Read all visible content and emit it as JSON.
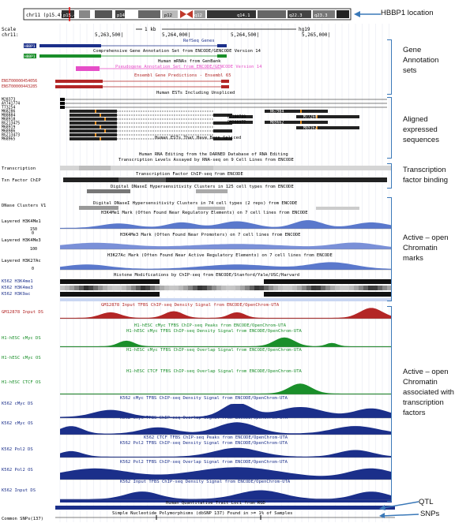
{
  "ideogram": {
    "chrom_label": "chr11 (p15.4)",
    "bands": [
      "p15.4",
      "p14",
      "p12",
      "q12",
      "q14.1",
      "q22.3",
      "q23.3"
    ],
    "callout": "HBBP1 location"
  },
  "ruler": {
    "scale_label": "Scale",
    "chr_label": "chr11:",
    "scale_text": "1 kb",
    "assembly": "hg19",
    "positions": [
      "5,263,500|",
      "5,264,000|",
      "5,264,500|",
      "5,265,000|"
    ]
  },
  "tracks": {
    "refseq_title": "RefSeq Genes",
    "gencode_title": "Comprehensive Gene Annotation Set from ENCODE/GENCODE Version 14",
    "mrna_title": "Human mRNAs from GenBank",
    "pseudo_title": "Pseudogene Annotation Set from ENCODE/GENCODE Version 14",
    "ensembl_title": "Ensembl Gene Predictions - Ensembl 65",
    "est_title": "Human ESTs Including Unspliced",
    "spliced_est_title": "Human ESTs That Have Been Spliced",
    "rna_editing_title": "Human RNA Editing from the DARNED Database of RNA Editing",
    "rnaseq_title": "Transcription Levels Assayed by RNA-seq on 9 Cell Lines from ENCODE",
    "txn_factor_title": "Transcription Factor ChIP-seq from ENCODE",
    "dnase_uniform_title": "Digital DNaseI Hypersensitivity Clusters in 125 cell types from ENCODE",
    "dnase_74_title": "Digital DNaseI Hypersensitivity Clusters in 74 cell types (2 reps) from ENCODE",
    "h3k4me1_title": "H3K4Me1 Mark (Often Found Near Regulatory Elements) on 7 cell lines from ENCODE",
    "h3k4me3_title": "H3K4Me3 Mark (Often Found Near Promoters) on 7 cell lines from ENCODE",
    "h3k27ac_title": "H3K27Ac Mark (Often Found Near Active Regulatory Elements) on 7 cell lines from ENCODE",
    "histone_title": "Histone Modifications by ChIP-seq from ENCODE/Stanford/Yale/USC/Harvard",
    "gm_input_title": "GM12878 Input TFBS ChIP-seq Density Signal from ENCODE/OpenChrom-UTA",
    "h1_peaks_title": "H1-hESC cMyc TFBS ChIP-seq Peaks from ENCODE/OpenChrom-UTA",
    "h1_density_title": "H1-hESC cMyc TFBS ChIP-seq Density Signal from ENCODE/OpenChrom-UTA",
    "h1_overlap_title": "H1-hESC cMyc TFBS ChIP-seq Overlap Signal from ENCODE/OpenChrom-UTA",
    "h1_ctcf_title": "H1-hESC CTCF TFBS ChIP-seq Overlap Signal from ENCODE/OpenChrom-UTA",
    "k562_cmyc_density_title": "K562 cMyc TFBS ChIP-seq Density Signal from ENCODE/OpenChrom-UTA",
    "k562_cmyc_overlap_title": "K562 cMyc TFBS ChIP-seq Overlap Signal from ENCODE/OpenChrom-UTA",
    "k562_ctcf_title": "K562 CTCF TFBS ChIP-seq Peaks from ENCODE/OpenChrom-UTA",
    "k562_pol2_density_title": "K562 Pol2 TFBS ChIP-seq Density Signal from ENCODE/OpenChrom-UTA",
    "k562_pol2_overlap_title": "K562 Pol2 TFBS ChIP-seq Overlap Signal from ENCODE/OpenChrom-UTA",
    "k562_input_title": "K562 Input TFBS ChIP-seq Density Signal from ENCODE/OpenChrom-UTA",
    "qtl_title": "Human Quantitative Trait Loci from RGD",
    "snp_title": "Simple Nucleotide Polymorphisms (dbSNP 137) Found in >= 1% of Samples"
  },
  "left_labels": {
    "hbbp1_a": "HBBP1",
    "hbbp1_b": "HBBP1",
    "enst1": "ENST00000454056",
    "enst2": "ENST00000443285",
    "transcription": "Transcription",
    "txn_factor": "Txn Factor ChIP",
    "dnase_clusters": "DNase Clusters V1",
    "layered_h3k4me1": "Layered H3K4Me1",
    "layered_h3k4me3": "Layered H3K4Me3",
    "layered_h3k27ac": "Layered H3K27Ac",
    "k562_h3k4me1": "K562 H3K4me1",
    "k562_h3k4me3": "K562 H3K4me3",
    "k562_h3k9ac": "K562 H3K9ac",
    "gm_input": "GM12878 Input DS",
    "h1_cmyc": "H1-hESC cMyc DS",
    "h1_cmyc_os": "H1-hESC cMyc OS",
    "h1_ctcf": "H1-hESC CTCF OS",
    "k562_cmyc_ds": "K562 cMyc DS",
    "k562_cmyc_os": "K562 cMyc OS",
    "k562_pol2_ds": "K562 Pol2 DS",
    "k562_pol2_os": "K562 Pol2 OS",
    "k562_input": "K562 Input DS",
    "common_snps": "Common SNPs(137)",
    "scale_150": "150",
    "scale_100": "100",
    "scale_0": "0"
  },
  "accessions": {
    "left": [
      "M28373",
      "AY741774",
      "T73254",
      "M68286",
      "M88884",
      "M68918",
      "BG213475",
      "M68919",
      "M68986",
      "BG213473",
      "M68965"
    ],
    "mid": [
      "BX100789",
      "BM288977"
    ],
    "right": [
      "N67984",
      "M77260",
      "M89662",
      "M89162"
    ]
  },
  "annotations": [
    {
      "label": "Gene Annotation sets"
    },
    {
      "label": "Aligned expressed sequences"
    },
    {
      "label": "Transcription factor binding"
    },
    {
      "label": "Active – open Chromatin marks"
    },
    {
      "label": "Active – open Chromatin associated with transcription factors"
    },
    {
      "label": "QTL"
    },
    {
      "label": "SNPs"
    }
  ],
  "colors": {
    "navy": "#1b2f8a",
    "green": "#1a8f2a",
    "red_track": "#b32626",
    "pink": "#e64ec8",
    "annotation_blue": "#3a78b8",
    "gray": "#888888"
  }
}
